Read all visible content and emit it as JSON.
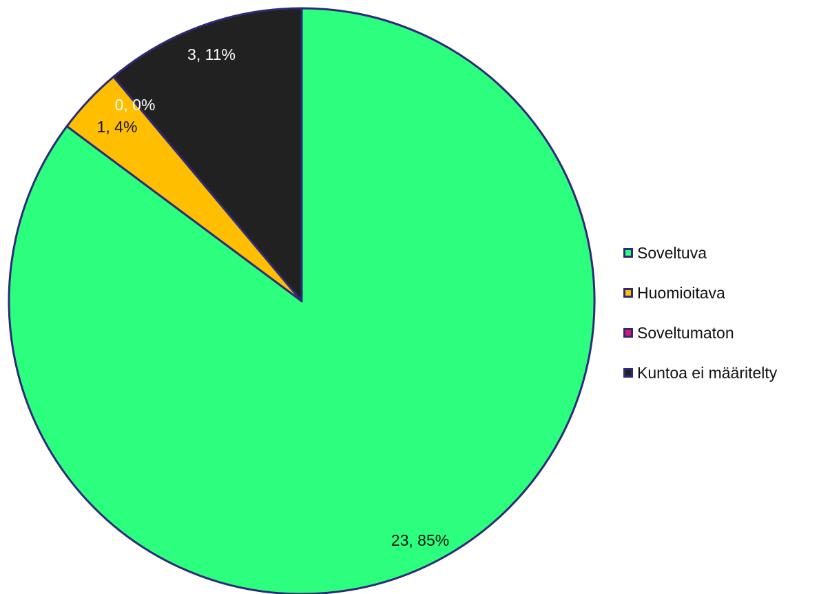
{
  "chart_data": {
    "type": "pie",
    "categories": [
      "Soveltuva",
      "Huomioitava",
      "Soveltumaton",
      "Kuntoa ei määritelty"
    ],
    "values": [
      23,
      1,
      0,
      3
    ],
    "percent_labels": [
      "85%",
      "4%",
      "0%",
      "11%"
    ],
    "data_labels": [
      "23, 85%",
      "1, 4%",
      "0, 0%",
      "3, 11%"
    ],
    "colors": [
      "#2bff7d",
      "#ffbf00",
      "#d6196e",
      "#212121"
    ],
    "label_colors": [
      "#111111",
      "#111111",
      "#ffffff",
      "#ffffff"
    ],
    "border_color": "#2e2a7a",
    "start_angle": "12 o'clock",
    "direction": "clockwise",
    "legend_position": "right"
  }
}
